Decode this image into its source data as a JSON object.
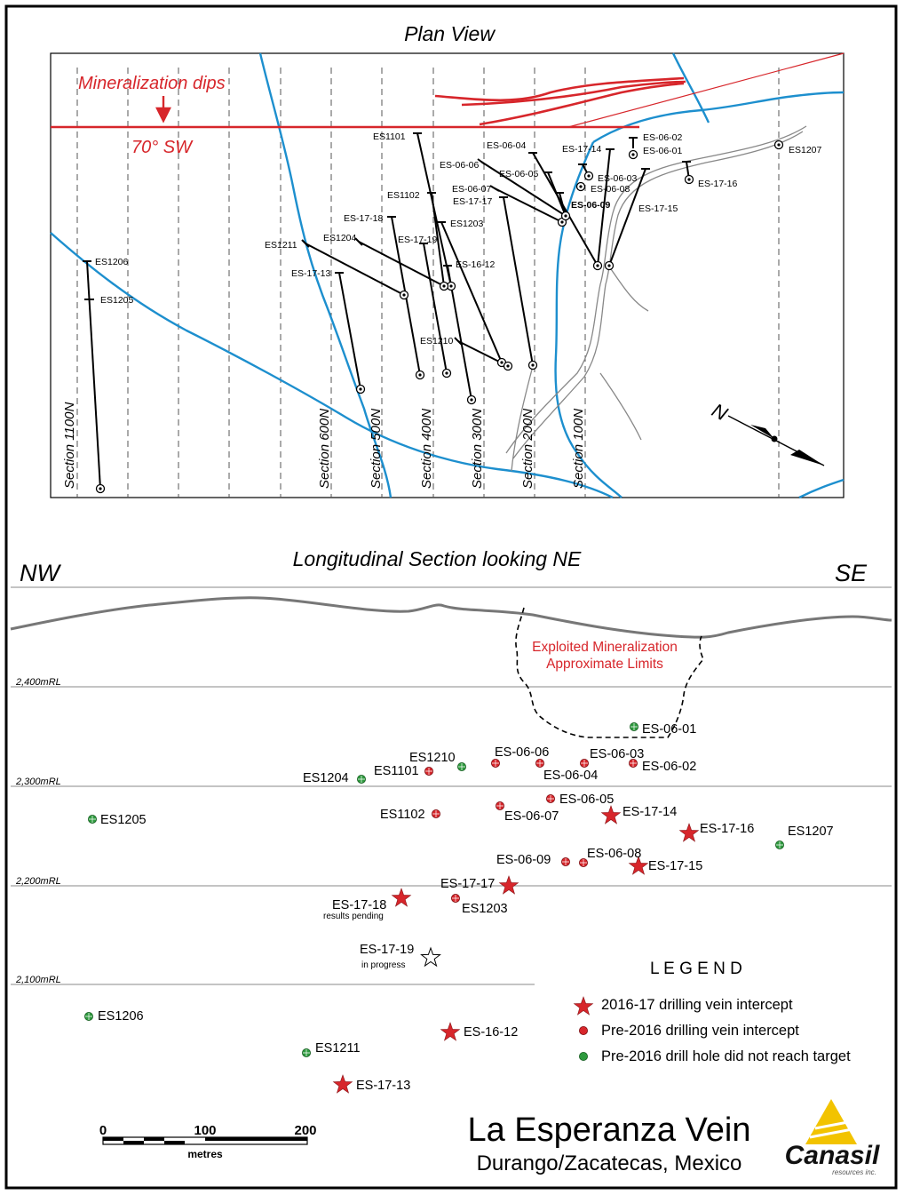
{
  "plan": {
    "title": "Plan View",
    "dip_note_1": "Mineralization dips",
    "dip_note_2": "70° SW",
    "north_label": "N",
    "sections": [
      "Section 1100N",
      "Section 600N",
      "Section 500N",
      "Section 400N",
      "Section 300N",
      "Section 200N",
      "Section 100N"
    ],
    "hole_labels": [
      "ES1101",
      "ES1102",
      "ES-17-18",
      "ES1204",
      "ES1211",
      "ES-17-13",
      "ES-17-19",
      "ES1203",
      "ES-16-12",
      "ES1210",
      "ES1206",
      "ES1205",
      "ES-06-04",
      "ES-06-06",
      "ES-06-05",
      "ES-06-07",
      "ES-17-17",
      "ES-17-14",
      "ES-06-02",
      "ES-06-01",
      "ES-06-03",
      "ES-06-08",
      "ES-06-09",
      "ES-17-15",
      "ES-17-16",
      "ES1207"
    ]
  },
  "long_section": {
    "title": "Longitudinal Section looking NE",
    "left_dir": "NW",
    "right_dir": "SE",
    "exploited_1": "Exploited Mineralization",
    "exploited_2": "Approximate Limits",
    "levels": [
      "2,400mRL",
      "2,300mRL",
      "2,200mRL",
      "2,100mRL"
    ],
    "hole_labels": [
      "ES-06-01",
      "ES1210",
      "ES-06-06",
      "ES-06-03",
      "ES-06-02",
      "ES1204",
      "ES1101",
      "ES-06-04",
      "ES-06-05",
      "ES1205",
      "ES1102",
      "ES-06-07",
      "ES-17-14",
      "ES-17-16",
      "ES1207",
      "ES-06-09",
      "ES-06-08",
      "ES-17-15",
      "ES-17-17",
      "ES-17-18",
      "ES1203",
      "ES-17-19",
      "ES1206",
      "ES-16-12",
      "ES1211",
      "ES-17-13"
    ],
    "note_pending": "results pending",
    "note_progress": "in progress"
  },
  "legend": {
    "title": "L E G E N D",
    "item1": "2016-17 drilling vein intercept",
    "item2": "Pre-2016 drilling vein intercept",
    "item3": "Pre-2016 drill hole did not reach target"
  },
  "scale": {
    "t0": "0",
    "t1": "100",
    "t2": "200",
    "unit": "metres"
  },
  "footer": {
    "title": "La Esperanza Vein",
    "subtitle": "Durango/Zacatecas, Mexico",
    "logo_name": "Canasil",
    "logo_sub": "resources inc."
  },
  "colors": {
    "red": "#d7262b",
    "blue": "#1d8fce",
    "green": "#2e9a3e",
    "grey": "#7a7a7a"
  }
}
